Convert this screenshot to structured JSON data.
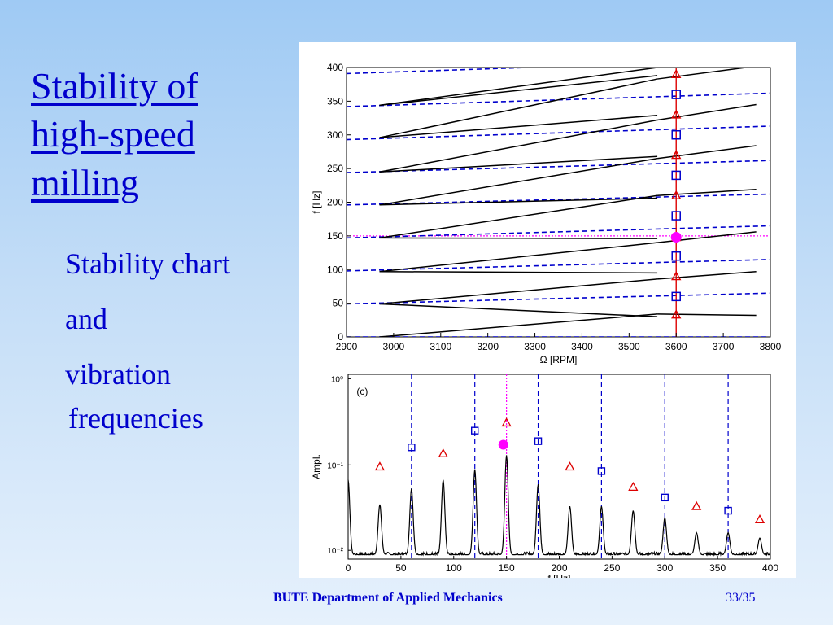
{
  "slide": {
    "title": "Stability of high-speed milling",
    "bullets": [
      "Stability chart",
      "and",
      "vibration",
      "frequencies"
    ],
    "footer_org": "BUTE Department of Applied Mechanics",
    "footer_page": "33/35"
  },
  "colors": {
    "text_blue": "#0000cc",
    "dash_blue": "#0000cc",
    "triangle_red": "#dd0000",
    "highlight_magenta": "#ff00ff",
    "curve_black": "#000000"
  },
  "chart_data": [
    {
      "type": "line",
      "xlabel": "Ω [RPM]",
      "ylabel": "f [Hz]",
      "xlim": [
        2900,
        3800
      ],
      "ylim": [
        0,
        400
      ],
      "xticks": [
        "2900",
        "3000",
        "3100",
        "3200",
        "3300",
        "3400",
        "3500",
        "3600",
        "3700",
        "3800"
      ],
      "yticks": [
        "0",
        "50",
        "100",
        "150",
        "200",
        "250",
        "300",
        "350",
        "400"
      ],
      "grid": false,
      "vertical_marker_x": 3600,
      "highlight_frequency": 150,
      "series": [
        {
          "style": "dashed-blue",
          "segments": [
            {
              "x": [
                2900,
                3800
              ],
              "y": [
                0,
                0
              ]
            },
            {
              "x": [
                2900,
                3800
              ],
              "y": [
                49,
                65
              ]
            },
            {
              "x": [
                2900,
                3800
              ],
              "y": [
                98,
                115
              ]
            },
            {
              "x": [
                2900,
                3800
              ],
              "y": [
                147,
                165
              ]
            },
            {
              "x": [
                2900,
                3800
              ],
              "y": [
                196,
                212
              ]
            },
            {
              "x": [
                2900,
                3800
              ],
              "y": [
                244,
                262
              ]
            },
            {
              "x": [
                2900,
                3800
              ],
              "y": [
                293,
                313
              ]
            },
            {
              "x": [
                2900,
                3800
              ],
              "y": [
                342,
                362
              ]
            },
            {
              "x": [
                2900,
                3800
              ],
              "y": [
                391,
                412
              ]
            }
          ]
        },
        {
          "style": "solid-black",
          "segments": [
            {
              "x": [
                2970,
                3560
              ],
              "y": [
                0,
                34
              ]
            },
            {
              "x": [
                3560,
                3770
              ],
              "y": [
                34,
                32
              ]
            },
            {
              "x": [
                2970,
                3560
              ],
              "y": [
                49,
                30
              ]
            },
            {
              "x": [
                2970,
                3560
              ],
              "y": [
                49,
                86
              ]
            },
            {
              "x": [
                3560,
                3770
              ],
              "y": [
                86,
                97
              ]
            },
            {
              "x": [
                2970,
                3560
              ],
              "y": [
                97,
                95
              ]
            },
            {
              "x": [
                2970,
                3560
              ],
              "y": [
                97,
                140
              ]
            },
            {
              "x": [
                3560,
                3770
              ],
              "y": [
                140,
                156
              ]
            },
            {
              "x": [
                2970,
                3560
              ],
              "y": [
                147,
                146
              ]
            },
            {
              "x": [
                2970,
                3560
              ],
              "y": [
                147,
                210
              ]
            },
            {
              "x": [
                3560,
                3770
              ],
              "y": [
                210,
                219
              ]
            },
            {
              "x": [
                2970,
                3560
              ],
              "y": [
                196,
                206
              ]
            },
            {
              "x": [
                2970,
                3560
              ],
              "y": [
                196,
                265
              ]
            },
            {
              "x": [
                3560,
                3770
              ],
              "y": [
                265,
                284
              ]
            },
            {
              "x": [
                2970,
                3560
              ],
              "y": [
                245,
                268
              ]
            },
            {
              "x": [
                2970,
                3560
              ],
              "y": [
                245,
                322
              ]
            },
            {
              "x": [
                3560,
                3770
              ],
              "y": [
                322,
                345
              ]
            },
            {
              "x": [
                2970,
                3560
              ],
              "y": [
                296,
                329
              ]
            },
            {
              "x": [
                2970,
                3560
              ],
              "y": [
                296,
                383
              ]
            },
            {
              "x": [
                3560,
                3770
              ],
              "y": [
                383,
                402
              ]
            },
            {
              "x": [
                2970,
                3560
              ],
              "y": [
                344,
                388
              ]
            },
            {
              "x": [
                2970,
                3560
              ],
              "y": [
                344,
                400
              ]
            }
          ]
        }
      ],
      "markers": {
        "triangles_y": [
          33,
          90,
          148,
          210,
          270,
          330,
          390
        ],
        "squares_y": [
          60,
          120,
          180,
          240,
          300,
          360
        ],
        "circle_y": 148
      }
    },
    {
      "type": "line",
      "label": "(c)",
      "xlabel": "f [Hz]",
      "ylabel": "Ampl.",
      "yscale": "log",
      "xlim": [
        0,
        400
      ],
      "ylim_log10": [
        -1.1,
        1.0
      ],
      "xticks": [
        "0",
        "50",
        "100",
        "150",
        "200",
        "250",
        "300",
        "350",
        "400"
      ],
      "ytick_labels": [
        "10⁰",
        "10⁻¹",
        "10⁻²"
      ],
      "peaks": [
        {
          "f": 0,
          "h": -0.2
        },
        {
          "f": 30,
          "h": -0.48
        },
        {
          "f": 60,
          "h": -0.3
        },
        {
          "f": 90,
          "h": -0.2
        },
        {
          "f": 120,
          "h": -0.08
        },
        {
          "f": 150,
          "h": 0.08
        },
        {
          "f": 180,
          "h": -0.25
        },
        {
          "f": 210,
          "h": -0.5
        },
        {
          "f": 240,
          "h": -0.5
        },
        {
          "f": 270,
          "h": -0.55
        },
        {
          "f": 300,
          "h": -0.63
        },
        {
          "f": 330,
          "h": -0.8
        },
        {
          "f": 360,
          "h": -0.8
        },
        {
          "f": 390,
          "h": -0.86
        }
      ],
      "dashed_lines_f": [
        60,
        120,
        180,
        240,
        300,
        360
      ],
      "dotted_line_f": 150,
      "triangles": [
        {
          "f": 30,
          "v": -0.05
        },
        {
          "f": 90,
          "v": 0.1
        },
        {
          "f": 150,
          "v": 0.45
        },
        {
          "f": 210,
          "v": -0.05
        },
        {
          "f": 270,
          "v": -0.28
        },
        {
          "f": 330,
          "v": -0.5
        },
        {
          "f": 390,
          "v": -0.65
        }
      ],
      "squares": [
        {
          "f": 60,
          "v": 0.17
        },
        {
          "f": 120,
          "v": 0.36
        },
        {
          "f": 180,
          "v": 0.24
        },
        {
          "f": 240,
          "v": -0.1
        },
        {
          "f": 300,
          "v": -0.4
        },
        {
          "f": 360,
          "v": -0.55
        }
      ],
      "circle": {
        "f": 147,
        "v": 0.2
      }
    }
  ]
}
